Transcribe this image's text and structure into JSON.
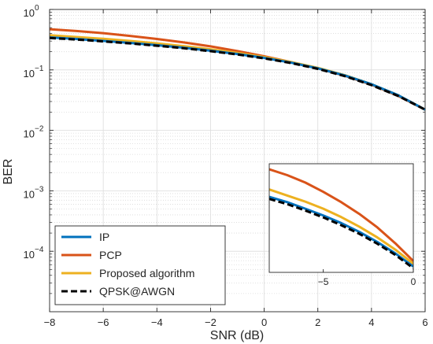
{
  "chart_data": {
    "type": "line",
    "title": "",
    "xlabel": "SNR (dB)",
    "ylabel": "BER",
    "xlim": [
      -8,
      6
    ],
    "ylim": [
      1e-05,
      1
    ],
    "yscale": "log",
    "grid": true,
    "minor_grid": true,
    "legend_placement": "bottom-left",
    "x_ticks": [
      -8,
      -6,
      -4,
      -2,
      0,
      2,
      4,
      6
    ],
    "x_tick_labels": [
      "−8",
      "−6",
      "−4",
      "−2",
      "0",
      "2",
      "4",
      "6"
    ],
    "y_ticks": [
      1,
      0.1,
      0.01,
      0.001,
      0.0001
    ],
    "y_tick_labels": [
      {
        "base": "10",
        "exp": "0"
      },
      {
        "base": "10",
        "exp": "−1"
      },
      {
        "base": "10",
        "exp": "−2"
      },
      {
        "base": "10",
        "exp": "−3"
      },
      {
        "base": "10",
        "exp": "−4"
      }
    ],
    "x": [
      -8,
      -7,
      -6,
      -5,
      -4,
      -3,
      -2,
      -1,
      0,
      1,
      2,
      3,
      4,
      5,
      6
    ],
    "series": [
      {
        "name": "IP",
        "color": "#0072BD",
        "dash": "solid",
        "values": [
          0.345,
          0.325,
          0.302,
          0.28,
          0.257,
          0.233,
          0.208,
          0.183,
          0.158,
          0.132,
          0.106,
          0.081,
          0.058,
          0.038,
          0.022
        ]
      },
      {
        "name": "PCP",
        "color": "#D95319",
        "dash": "solid",
        "values": [
          0.47,
          0.44,
          0.405,
          0.365,
          0.325,
          0.285,
          0.245,
          0.205,
          0.168,
          0.135,
          0.106,
          0.08,
          0.057,
          0.037,
          0.022
        ]
      },
      {
        "name": "Proposed algorithm",
        "color": "#EDB120",
        "dash": "solid",
        "values": [
          0.375,
          0.35,
          0.327,
          0.302,
          0.275,
          0.247,
          0.219,
          0.191,
          0.163,
          0.135,
          0.108,
          0.082,
          0.058,
          0.038,
          0.022
        ]
      },
      {
        "name": "QPSK@AWGN",
        "color": "#000000",
        "dash": "dashed",
        "values": [
          0.337,
          0.318,
          0.296,
          0.274,
          0.251,
          0.228,
          0.204,
          0.18,
          0.155,
          0.13,
          0.104,
          0.079,
          0.056,
          0.037,
          0.022
        ]
      }
    ],
    "inset": {
      "xlim": [
        -8,
        0
      ],
      "x_ticks": [
        -5,
        0
      ],
      "x_tick_labels": [
        "−5",
        "0"
      ],
      "ylim": [
        0.148,
        0.5
      ],
      "yscale": "log",
      "grid": false
    }
  }
}
